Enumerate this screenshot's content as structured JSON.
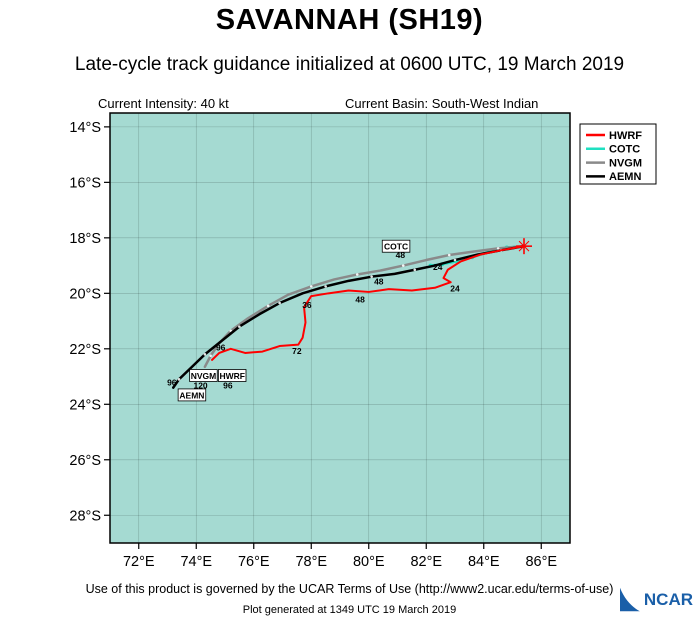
{
  "header": {
    "title": "SAVANNAH (SH19)",
    "subtitle": "Late-cycle track guidance initialized at 0600 UTC, 19 March 2019",
    "intensity_label": "Current Intensity: 40 kt",
    "basin_label": "Current Basin: South-West Indian"
  },
  "footer": {
    "terms": "Use of this product is governed by the UCAR Terms of Use (http://www2.ucar.edu/terms-of-use)",
    "generated": "Plot generated at 1349 UTC   19 March 2019",
    "logo_text": "NCAR"
  },
  "chart_data": {
    "type": "line",
    "title": "",
    "xlabel": "",
    "ylabel": "",
    "xlim": [
      71,
      87
    ],
    "ylim": [
      13.5,
      29
    ],
    "bg_color": "#a5dad2",
    "grid_color": "rgba(0,0,0,0.22)",
    "x_ticks": [
      {
        "value": 72,
        "label": "72°E"
      },
      {
        "value": 74,
        "label": "74°E"
      },
      {
        "value": 76,
        "label": "76°E"
      },
      {
        "value": 78,
        "label": "78°E"
      },
      {
        "value": 80,
        "label": "80°E"
      },
      {
        "value": 82,
        "label": "82°E"
      },
      {
        "value": 84,
        "label": "84°E"
      },
      {
        "value": 86,
        "label": "86°E"
      }
    ],
    "y_ticks": [
      {
        "value": 14,
        "label": "14°S"
      },
      {
        "value": 16,
        "label": "16°S"
      },
      {
        "value": 18,
        "label": "18°S"
      },
      {
        "value": 20,
        "label": "20°S"
      },
      {
        "value": 22,
        "label": "22°S"
      },
      {
        "value": 24,
        "label": "24°S"
      },
      {
        "value": 26,
        "label": "26°S"
      },
      {
        "value": 28,
        "label": "28°S"
      }
    ],
    "initial_position": {
      "lon": 85.4,
      "lat": 18.3,
      "color": "#ff0000"
    },
    "legend": {
      "position": "top-right",
      "entries": [
        {
          "label": "HWRF",
          "color": "#ff0000"
        },
        {
          "label": "COTC",
          "color": "#1fe0c1"
        },
        {
          "label": "NVGM",
          "color": "#8a8a8a"
        },
        {
          "label": "AEMN",
          "color": "#000000"
        }
      ]
    },
    "series": [
      {
        "name": "COTC",
        "color": "#1fe0c1",
        "width": 2.5,
        "marker": "dot",
        "points": [
          [
            85.4,
            18.3
          ],
          [
            84.8,
            18.35
          ],
          [
            84.2,
            18.5
          ],
          [
            83.6,
            18.7
          ],
          [
            83.05,
            18.85
          ],
          [
            82.55,
            18.95
          ],
          [
            82.15,
            19.0
          ]
        ]
      },
      {
        "name": "NVGM",
        "color": "#8a8a8a",
        "width": 2.5,
        "marker": "tick",
        "points": [
          [
            85.4,
            18.3
          ],
          [
            84.5,
            18.38
          ],
          [
            83.6,
            18.5
          ],
          [
            82.8,
            18.62
          ],
          [
            82.0,
            18.8
          ],
          [
            81.2,
            19.0
          ],
          [
            80.4,
            19.18
          ],
          [
            79.6,
            19.32
          ],
          [
            78.8,
            19.5
          ],
          [
            78.0,
            19.75
          ],
          [
            77.2,
            20.05
          ],
          [
            76.5,
            20.45
          ],
          [
            75.8,
            20.9
          ],
          [
            75.2,
            21.35
          ],
          [
            74.8,
            21.8
          ],
          [
            74.5,
            22.25
          ],
          [
            74.3,
            22.65
          ]
        ]
      },
      {
        "name": "AEMN",
        "color": "#000000",
        "width": 2.5,
        "marker": "tick",
        "points": [
          [
            85.4,
            18.3
          ],
          [
            84.6,
            18.45
          ],
          [
            83.8,
            18.6
          ],
          [
            83.0,
            18.8
          ],
          [
            82.3,
            19.0
          ],
          [
            81.6,
            19.15
          ],
          [
            80.9,
            19.3
          ],
          [
            80.1,
            19.4
          ],
          [
            79.3,
            19.55
          ],
          [
            78.5,
            19.75
          ],
          [
            77.7,
            20.0
          ],
          [
            76.9,
            20.35
          ],
          [
            76.2,
            20.75
          ],
          [
            75.5,
            21.2
          ],
          [
            74.9,
            21.7
          ],
          [
            74.3,
            22.2
          ],
          [
            73.8,
            22.7
          ],
          [
            73.4,
            23.1
          ],
          [
            73.2,
            23.4
          ]
        ]
      },
      {
        "name": "HWRF",
        "color": "#ff0000",
        "width": 2,
        "marker": "none",
        "points": [
          [
            85.4,
            18.3
          ],
          [
            84.6,
            18.45
          ],
          [
            83.9,
            18.6
          ],
          [
            83.2,
            18.85
          ],
          [
            82.75,
            19.15
          ],
          [
            82.6,
            19.45
          ],
          [
            82.85,
            19.6
          ],
          [
            82.3,
            19.8
          ],
          [
            81.5,
            19.9
          ],
          [
            80.7,
            19.85
          ],
          [
            80.0,
            19.95
          ],
          [
            79.3,
            19.9
          ],
          [
            78.6,
            20.0
          ],
          [
            78.0,
            20.1
          ],
          [
            77.75,
            20.5
          ],
          [
            77.8,
            21.05
          ],
          [
            77.7,
            21.6
          ],
          [
            77.55,
            21.85
          ],
          [
            76.9,
            21.9
          ],
          [
            76.3,
            22.1
          ],
          [
            75.7,
            22.15
          ],
          [
            75.2,
            22.0
          ],
          [
            74.8,
            22.15
          ],
          [
            74.55,
            22.4
          ]
        ]
      }
    ],
    "point_labels": [
      {
        "text": "COTC",
        "lon": 80.95,
        "lat": 18.32,
        "boxed": true
      },
      {
        "text": "48",
        "lon": 81.1,
        "lat": 18.62
      },
      {
        "text": "24",
        "lon": 82.4,
        "lat": 19.05
      },
      {
        "text": "48",
        "lon": 80.35,
        "lat": 19.58
      },
      {
        "text": "24",
        "lon": 83.0,
        "lat": 19.82
      },
      {
        "text": "48",
        "lon": 79.7,
        "lat": 20.22
      },
      {
        "text": "36",
        "lon": 77.85,
        "lat": 20.42
      },
      {
        "text": "72",
        "lon": 77.5,
        "lat": 22.08
      },
      {
        "text": "96",
        "lon": 74.85,
        "lat": 21.95
      },
      {
        "text": "96",
        "lon": 73.15,
        "lat": 23.22
      },
      {
        "text": "NVGM",
        "lon": 74.25,
        "lat": 22.98,
        "boxed": true
      },
      {
        "text": "HWRF",
        "lon": 75.25,
        "lat": 22.98,
        "boxed": true
      },
      {
        "text": "120",
        "lon": 74.15,
        "lat": 23.32
      },
      {
        "text": "96",
        "lon": 75.1,
        "lat": 23.32
      },
      {
        "text": "AEMN",
        "lon": 73.85,
        "lat": 23.68,
        "boxed": true
      }
    ]
  }
}
